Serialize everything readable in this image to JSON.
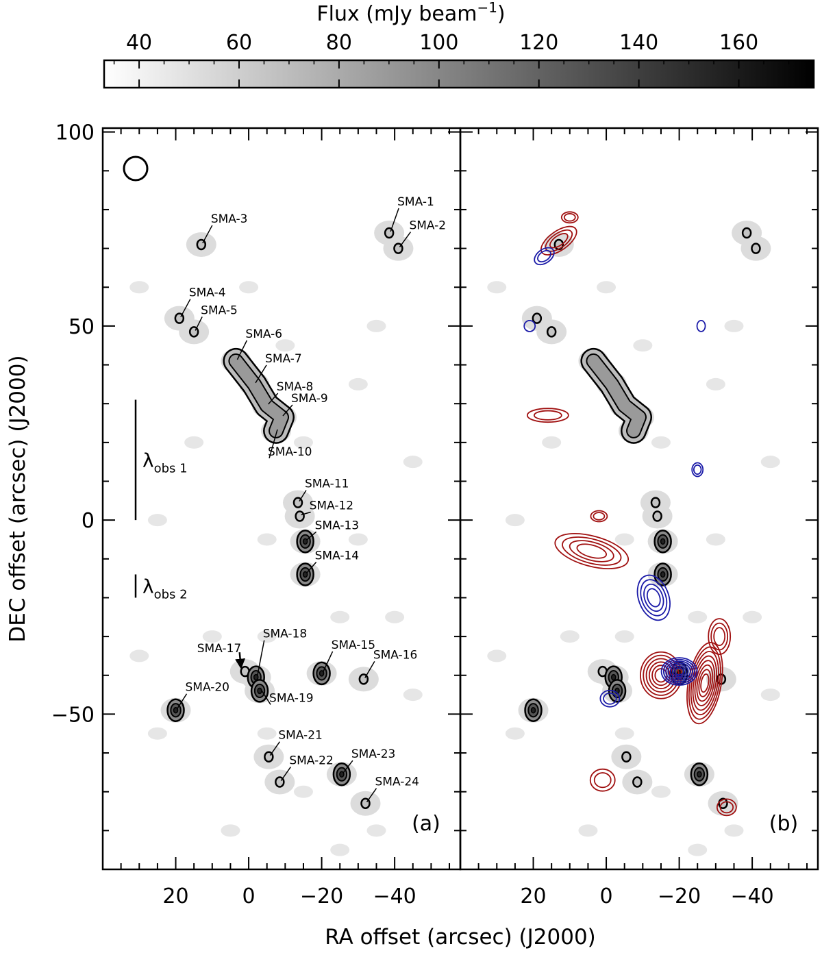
{
  "colorbar": {
    "label": "Flux (mJy beam",
    "label_sup": "−1",
    "label_close": ")",
    "ticks": [
      "40",
      "60",
      "80",
      "100",
      "120",
      "140",
      "160"
    ],
    "tick_values": [
      40,
      60,
      80,
      100,
      120,
      140,
      160
    ],
    "range": [
      33,
      175
    ],
    "colormap": "grey (white to black)"
  },
  "axes": {
    "xlabel": "RA offset (arcsec) (J2000)",
    "ylabel": "DEC offset (arcsec) (J2000)",
    "xticks": [
      "20",
      "0",
      "−20",
      "−40"
    ],
    "xtick_values": [
      20,
      0,
      -20,
      -40
    ],
    "yticks": [
      "100",
      "50",
      "0",
      "−50"
    ],
    "ytick_values": [
      100,
      50,
      0,
      -50
    ],
    "xlim": [
      40,
      -58
    ],
    "ylim": [
      -90,
      101
    ]
  },
  "panels": [
    {
      "tag": "(a)"
    },
    {
      "tag": "(b)"
    }
  ],
  "scale_bars": [
    {
      "label": "λ",
      "sub": "obs 1",
      "from_dec": 31,
      "to_dec": 0
    },
    {
      "label": "λ",
      "sub": "obs 2",
      "from_dec": -14,
      "to_dec": -20
    }
  ],
  "colors": {
    "redshifted": "#a01010",
    "blueshifted": "#1a1aa8",
    "contour": "#000000",
    "panel_frame": "#000000"
  },
  "chart_data": {
    "type": "contour map",
    "sources": [
      {
        "name": "SMA-1",
        "ra": -38.5,
        "dec": 74
      },
      {
        "name": "SMA-2",
        "ra": -41,
        "dec": 70
      },
      {
        "name": "SMA-3",
        "ra": 13,
        "dec": 71
      },
      {
        "name": "SMA-4",
        "ra": 19,
        "dec": 52
      },
      {
        "name": "SMA-5",
        "ra": 15,
        "dec": 48.5
      },
      {
        "name": "SMA-6",
        "ra": 3.5,
        "dec": 41
      },
      {
        "name": "SMA-7",
        "ra": -1.5,
        "dec": 35
      },
      {
        "name": "SMA-8",
        "ra": -5,
        "dec": 29.5
      },
      {
        "name": "SMA-9",
        "ra": -9,
        "dec": 26.5
      },
      {
        "name": "SMA-10",
        "ra": -7.5,
        "dec": 23
      },
      {
        "name": "SMA-11",
        "ra": -13.5,
        "dec": 4.5
      },
      {
        "name": "SMA-12",
        "ra": -14,
        "dec": 1
      },
      {
        "name": "SMA-13",
        "ra": -15.5,
        "dec": -5.5
      },
      {
        "name": "SMA-14",
        "ra": -15.5,
        "dec": -14
      },
      {
        "name": "SMA-15",
        "ra": -20,
        "dec": -39.5
      },
      {
        "name": "SMA-16",
        "ra": -31.5,
        "dec": -41
      },
      {
        "name": "SMA-17",
        "ra": 1,
        "dec": -39
      },
      {
        "name": "SMA-18",
        "ra": -2,
        "dec": -40.5
      },
      {
        "name": "SMA-19",
        "ra": -3,
        "dec": -44
      },
      {
        "name": "SMA-20",
        "ra": 20,
        "dec": -49
      },
      {
        "name": "SMA-21",
        "ra": -5.5,
        "dec": -61
      },
      {
        "name": "SMA-22",
        "ra": -8.5,
        "dec": -67.5
      },
      {
        "name": "SMA-23",
        "ra": -25.5,
        "dec": -65.5
      },
      {
        "name": "SMA-24",
        "ra": -32,
        "dec": -73
      }
    ]
  }
}
